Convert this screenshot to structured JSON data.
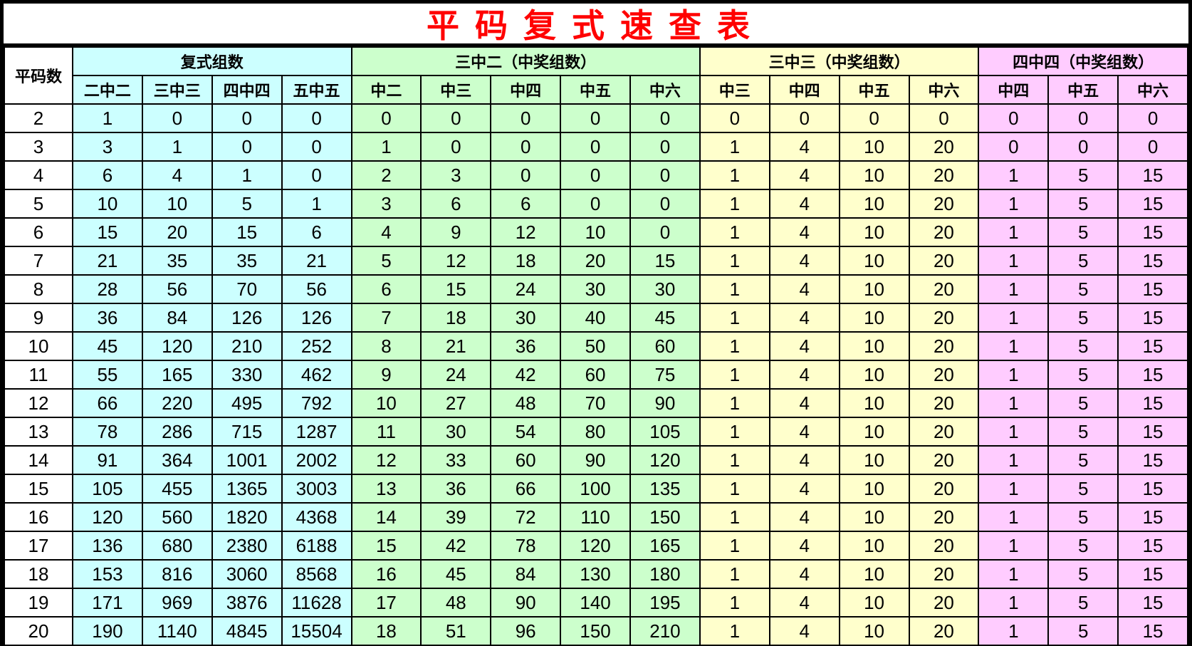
{
  "title": "平码复式速查表",
  "header": {
    "row_label": "平码数",
    "groups": [
      {
        "label": "复式组数",
        "color": "#ccffff",
        "columns": [
          "二中二",
          "三中三",
          "四中四",
          "五中五"
        ]
      },
      {
        "label": "三中二（中奖组数）",
        "color": "#ccffcc",
        "columns": [
          "中二",
          "中三",
          "中四",
          "中五",
          "中六"
        ]
      },
      {
        "label": "三中三（中奖组数）",
        "color": "#ffffcc",
        "columns": [
          "中三",
          "中四",
          "中五",
          "中六"
        ]
      },
      {
        "label": "四中四（中奖组数）",
        "color": "#ffccff",
        "columns": [
          "中四",
          "中五",
          "中六"
        ]
      }
    ]
  },
  "rows": [
    [
      "2",
      "1",
      "0",
      "0",
      "0",
      "0",
      "0",
      "0",
      "0",
      "0",
      "0",
      "0",
      "0",
      "0",
      "0",
      "0",
      "0"
    ],
    [
      "3",
      "3",
      "1",
      "0",
      "0",
      "1",
      "0",
      "0",
      "0",
      "0",
      "1",
      "4",
      "10",
      "20",
      "0",
      "0",
      "0"
    ],
    [
      "4",
      "6",
      "4",
      "1",
      "0",
      "2",
      "3",
      "0",
      "0",
      "0",
      "1",
      "4",
      "10",
      "20",
      "1",
      "5",
      "15"
    ],
    [
      "5",
      "10",
      "10",
      "5",
      "1",
      "3",
      "6",
      "6",
      "0",
      "0",
      "1",
      "4",
      "10",
      "20",
      "1",
      "5",
      "15"
    ],
    [
      "6",
      "15",
      "20",
      "15",
      "6",
      "4",
      "9",
      "12",
      "10",
      "0",
      "1",
      "4",
      "10",
      "20",
      "1",
      "5",
      "15"
    ],
    [
      "7",
      "21",
      "35",
      "35",
      "21",
      "5",
      "12",
      "18",
      "20",
      "15",
      "1",
      "4",
      "10",
      "20",
      "1",
      "5",
      "15"
    ],
    [
      "8",
      "28",
      "56",
      "70",
      "56",
      "6",
      "15",
      "24",
      "30",
      "30",
      "1",
      "4",
      "10",
      "20",
      "1",
      "5",
      "15"
    ],
    [
      "9",
      "36",
      "84",
      "126",
      "126",
      "7",
      "18",
      "30",
      "40",
      "45",
      "1",
      "4",
      "10",
      "20",
      "1",
      "5",
      "15"
    ],
    [
      "10",
      "45",
      "120",
      "210",
      "252",
      "8",
      "21",
      "36",
      "50",
      "60",
      "1",
      "4",
      "10",
      "20",
      "1",
      "5",
      "15"
    ],
    [
      "11",
      "55",
      "165",
      "330",
      "462",
      "9",
      "24",
      "42",
      "60",
      "75",
      "1",
      "4",
      "10",
      "20",
      "1",
      "5",
      "15"
    ],
    [
      "12",
      "66",
      "220",
      "495",
      "792",
      "10",
      "27",
      "48",
      "70",
      "90",
      "1",
      "4",
      "10",
      "20",
      "1",
      "5",
      "15"
    ],
    [
      "13",
      "78",
      "286",
      "715",
      "1287",
      "11",
      "30",
      "54",
      "80",
      "105",
      "1",
      "4",
      "10",
      "20",
      "1",
      "5",
      "15"
    ],
    [
      "14",
      "91",
      "364",
      "1001",
      "2002",
      "12",
      "33",
      "60",
      "90",
      "120",
      "1",
      "4",
      "10",
      "20",
      "1",
      "5",
      "15"
    ],
    [
      "15",
      "105",
      "455",
      "1365",
      "3003",
      "13",
      "36",
      "66",
      "100",
      "135",
      "1",
      "4",
      "10",
      "20",
      "1",
      "5",
      "15"
    ],
    [
      "16",
      "120",
      "560",
      "1820",
      "4368",
      "14",
      "39",
      "72",
      "110",
      "150",
      "1",
      "4",
      "10",
      "20",
      "1",
      "5",
      "15"
    ],
    [
      "17",
      "136",
      "680",
      "2380",
      "6188",
      "15",
      "42",
      "78",
      "120",
      "165",
      "1",
      "4",
      "10",
      "20",
      "1",
      "5",
      "15"
    ],
    [
      "18",
      "153",
      "816",
      "3060",
      "8568",
      "16",
      "45",
      "84",
      "130",
      "180",
      "1",
      "4",
      "10",
      "20",
      "1",
      "5",
      "15"
    ],
    [
      "19",
      "171",
      "969",
      "3876",
      "11628",
      "17",
      "48",
      "90",
      "140",
      "195",
      "1",
      "4",
      "10",
      "20",
      "1",
      "5",
      "15"
    ],
    [
      "20",
      "190",
      "1140",
      "4845",
      "15504",
      "18",
      "51",
      "96",
      "150",
      "210",
      "1",
      "4",
      "10",
      "20",
      "1",
      "5",
      "15"
    ]
  ]
}
